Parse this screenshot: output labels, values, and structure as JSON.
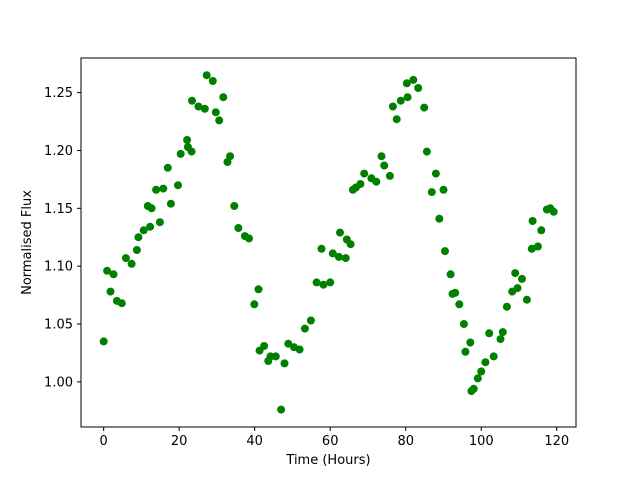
{
  "chart_data": {
    "type": "scatter",
    "title": "",
    "xlabel": "Time (Hours)",
    "ylabel": "Normalised Flux",
    "xlim": [
      -6.0,
      125.1
    ],
    "ylim": [
      0.961,
      1.2799
    ],
    "grid": false,
    "legend": null,
    "marker_color": "#008000",
    "marker_radius_px": 4,
    "xticks": [
      {
        "value": 0,
        "label": "0"
      },
      {
        "value": 20,
        "label": "20"
      },
      {
        "value": 40,
        "label": "40"
      },
      {
        "value": 60,
        "label": "60"
      },
      {
        "value": 80,
        "label": "80"
      },
      {
        "value": 100,
        "label": "100"
      },
      {
        "value": 120,
        "label": "120"
      }
    ],
    "yticks": [
      {
        "value": 1.0,
        "label": "1.00"
      },
      {
        "value": 1.05,
        "label": "1.05"
      },
      {
        "value": 1.1,
        "label": "1.10"
      },
      {
        "value": 1.15,
        "label": "1.15"
      },
      {
        "value": 1.2,
        "label": "1.20"
      },
      {
        "value": 1.25,
        "label": "1.25"
      }
    ],
    "x": [
      0.0,
      0.9,
      1.8,
      2.6,
      3.5,
      4.8,
      5.9,
      7.4,
      8.8,
      9.2,
      10.6,
      11.7,
      12.3,
      12.7,
      13.9,
      14.9,
      15.8,
      17.0,
      17.8,
      19.7,
      20.4,
      22.1,
      22.3,
      23.3,
      23.4,
      25.1,
      26.8,
      27.3,
      28.9,
      29.7,
      30.6,
      31.7,
      32.8,
      33.5,
      34.6,
      35.7,
      37.4,
      38.5,
      39.9,
      41.0,
      41.3,
      42.5,
      43.6,
      44.2,
      45.6,
      47.0,
      47.9,
      48.9,
      50.4,
      51.9,
      53.3,
      54.9,
      56.4,
      57.7,
      58.2,
      60.0,
      60.7,
      62.3,
      62.6,
      64.1,
      64.4,
      65.4,
      66.0,
      66.8,
      68.0,
      69.0,
      70.9,
      72.2,
      73.6,
      74.3,
      75.8,
      76.6,
      77.6,
      78.7,
      80.3,
      80.5,
      82.0,
      83.3,
      84.9,
      85.6,
      86.9,
      88.0,
      88.9,
      90.0,
      90.4,
      91.9,
      92.4,
      93.1,
      94.2,
      95.4,
      95.8,
      97.1,
      97.4,
      98.0,
      99.1,
      100.0,
      101.1,
      102.1,
      103.3,
      105.1,
      105.7,
      106.8,
      108.2,
      109.0,
      109.6,
      110.8,
      112.1,
      113.4,
      113.6,
      115.0,
      115.9,
      117.4,
      118.3,
      119.2
    ],
    "y": [
      1.035,
      1.096,
      1.078,
      1.093,
      1.07,
      1.068,
      1.107,
      1.102,
      1.114,
      1.125,
      1.131,
      1.152,
      1.134,
      1.15,
      1.166,
      1.138,
      1.167,
      1.185,
      1.154,
      1.17,
      1.197,
      1.209,
      1.203,
      1.199,
      1.243,
      1.238,
      1.236,
      1.265,
      1.26,
      1.233,
      1.226,
      1.246,
      1.19,
      1.195,
      1.152,
      1.133,
      1.126,
      1.124,
      1.067,
      1.08,
      1.027,
      1.031,
      1.018,
      1.022,
      1.022,
      0.976,
      1.016,
      1.033,
      1.03,
      1.028,
      1.046,
      1.053,
      1.086,
      1.115,
      1.084,
      1.086,
      1.111,
      1.108,
      1.129,
      1.107,
      1.123,
      1.119,
      1.166,
      1.168,
      1.171,
      1.18,
      1.176,
      1.173,
      1.195,
      1.187,
      1.178,
      1.238,
      1.227,
      1.243,
      1.258,
      1.246,
      1.261,
      1.254,
      1.237,
      1.199,
      1.164,
      1.18,
      1.141,
      1.166,
      1.113,
      1.093,
      1.076,
      1.077,
      1.067,
      1.05,
      1.026,
      1.034,
      0.992,
      0.994,
      1.003,
      1.009,
      1.017,
      1.042,
      1.022,
      1.037,
      1.043,
      1.065,
      1.078,
      1.094,
      1.081,
      1.089,
      1.071,
      1.115,
      1.139,
      1.117,
      1.131,
      1.149,
      1.15,
      1.147
    ]
  }
}
